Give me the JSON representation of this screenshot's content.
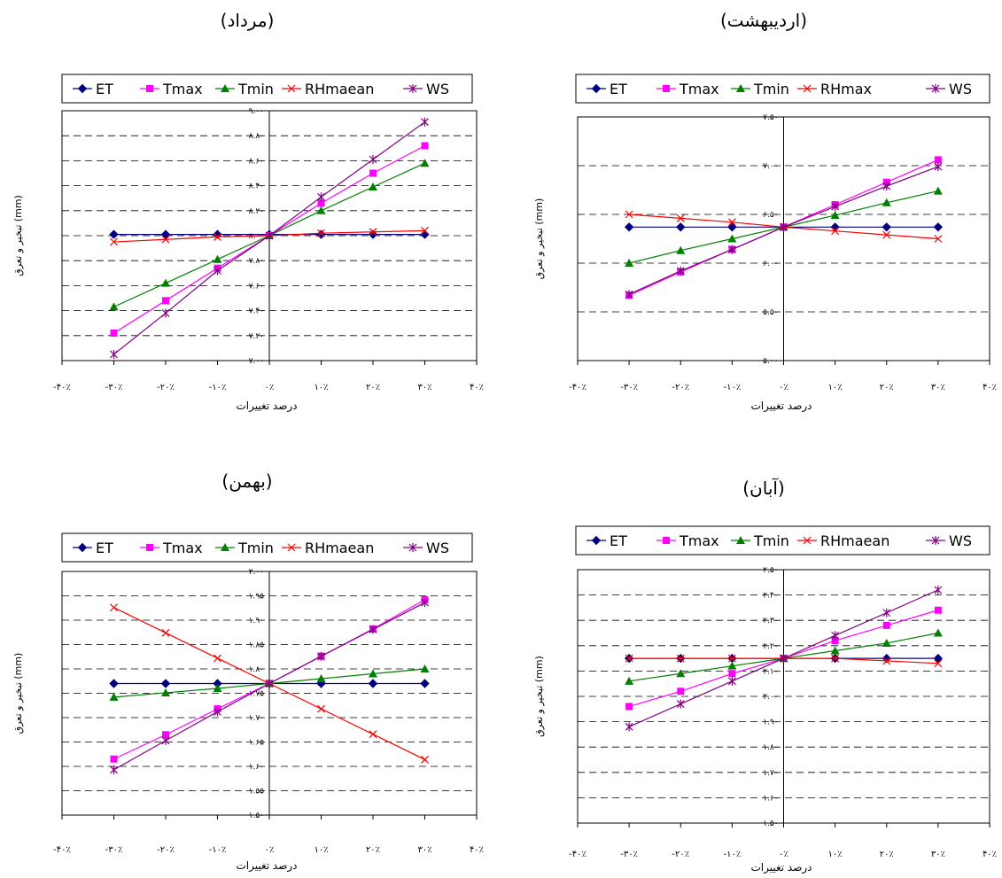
{
  "chart_data": [
    {
      "type": "line",
      "title": "(مرداد)",
      "xlabel": "درصد تغییرات",
      "ylabel": "تبخیر و تعرق (mm)",
      "x_ticks": [
        "-۴۰٪",
        "-۳۰٪",
        "-۲۰٪",
        "-۱۰٪",
        "۰٪",
        "۱۰٪",
        "۲۰٪",
        "۳۰٪",
        "۴۰٪"
      ],
      "x_values": [
        -30,
        -20,
        -10,
        0,
        10,
        20,
        30
      ],
      "xlim": [
        -40,
        40
      ],
      "ylim": [
        7.0,
        9.0
      ],
      "y_ticks": [
        "۷.۰۰",
        "۷.۲۰",
        "۷.۴۰",
        "۷.۶۰",
        "۷.۸۰",
        "۸.۰۰",
        "۸.۲۰",
        "۸.۴۰",
        "۸.۶۰",
        "۸.۸۰",
        "۹.۰۰"
      ],
      "y_tick_values": [
        7.0,
        7.2,
        7.4,
        7.6,
        7.8,
        8.0,
        8.2,
        8.4,
        8.6,
        8.8,
        9.0
      ],
      "grid": "horizontal dashed",
      "legend": "top",
      "series": [
        {
          "name": "ET",
          "values": [
            8.01,
            8.01,
            8.01,
            8.01,
            8.01,
            8.01,
            8.01
          ]
        },
        {
          "name": "Tmax",
          "values": [
            7.22,
            7.48,
            7.74,
            8.0,
            8.26,
            8.5,
            8.72
          ]
        },
        {
          "name": "Tmin",
          "values": [
            7.43,
            7.62,
            7.81,
            8.0,
            8.2,
            8.39,
            8.58
          ]
        },
        {
          "name": "RHmaean",
          "values": [
            7.95,
            7.97,
            7.99,
            8.0,
            8.02,
            8.03,
            8.04
          ]
        },
        {
          "name": "WS",
          "values": [
            7.05,
            7.38,
            7.72,
            8.0,
            8.31,
            8.61,
            8.91
          ]
        }
      ]
    },
    {
      "type": "line",
      "title": "(اردیبهشت)",
      "xlabel": "درصد تغییرات",
      "ylabel": "تبخیر و تعرق (mm)",
      "x_ticks": [
        "-۴۰٪",
        "-۳۰٪",
        "-۲۰٪",
        "-۱۰٪",
        "۰٪",
        "۱۰٪",
        "۲۰٪",
        "۳۰٪",
        "۴۰٪"
      ],
      "x_values": [
        -30,
        -20,
        -10,
        0,
        10,
        20,
        30
      ],
      "xlim": [
        -40,
        40
      ],
      "ylim": [
        5.0,
        7.5
      ],
      "y_ticks": [
        "۵.۰۰",
        "۵.۵۰",
        "۶.۰۰",
        "۶.۵۰",
        "۷.۰۰",
        "۷.۵۰"
      ],
      "y_tick_values": [
        5.0,
        5.5,
        6.0,
        6.5,
        7.0,
        7.5
      ],
      "grid": "horizontal dashed",
      "legend": "top",
      "series": [
        {
          "name": "ET",
          "values": [
            6.37,
            6.37,
            6.37,
            6.37,
            6.37,
            6.37,
            6.37
          ]
        },
        {
          "name": "Tmax",
          "values": [
            5.67,
            5.91,
            6.14,
            6.37,
            6.6,
            6.83,
            7.06
          ]
        },
        {
          "name": "Tmin",
          "values": [
            6.0,
            6.13,
            6.25,
            6.37,
            6.49,
            6.62,
            6.74
          ]
        },
        {
          "name": "RHmax",
          "values": [
            6.5,
            6.46,
            6.42,
            6.37,
            6.33,
            6.29,
            6.25
          ]
        },
        {
          "name": "WS",
          "values": [
            5.68,
            5.92,
            6.14,
            6.37,
            6.58,
            6.79,
            6.99
          ]
        }
      ]
    },
    {
      "type": "line",
      "title": "(بهمن)",
      "xlabel": "درصد تغییرات",
      "ylabel": "تبخیر و تعرق (mm)",
      "x_ticks": [
        "-۴۰٪",
        "-۳۰٪",
        "-۲۰٪",
        "-۱۰٪",
        "۰٪",
        "۱۰٪",
        "۲۰٪",
        "۳۰٪",
        "۴۰٪"
      ],
      "x_values": [
        -30,
        -20,
        -10,
        0,
        10,
        20,
        30
      ],
      "xlim": [
        -40,
        40
      ],
      "ylim": [
        1.5,
        2.0
      ],
      "y_ticks": [
        "۱.۵۰",
        "۱.۵۵",
        "۱.۶۰",
        "۱.۶۵",
        "۱.۷۰",
        "۱.۷۵",
        "۱.۸۰",
        "۱.۸۵",
        "۱.۹۰",
        "۱.۹۵",
        "۲.۰۰"
      ],
      "y_tick_values": [
        1.5,
        1.55,
        1.6,
        1.65,
        1.7,
        1.75,
        1.8,
        1.85,
        1.9,
        1.95,
        2.0
      ],
      "grid": "horizontal dashed",
      "legend": "top",
      "series": [
        {
          "name": "ET",
          "values": [
            1.77,
            1.77,
            1.77,
            1.77,
            1.77,
            1.77,
            1.77
          ]
        },
        {
          "name": "Tmax",
          "values": [
            1.615,
            1.665,
            1.718,
            1.77,
            1.826,
            1.882,
            1.942
          ]
        },
        {
          "name": "Tmin",
          "values": [
            1.742,
            1.751,
            1.76,
            1.77,
            1.78,
            1.79,
            1.8
          ]
        },
        {
          "name": "RHmaean",
          "values": [
            1.926,
            1.874,
            1.822,
            1.77,
            1.718,
            1.666,
            1.614
          ]
        },
        {
          "name": "WS",
          "values": [
            1.593,
            1.653,
            1.712,
            1.77,
            1.826,
            1.881,
            1.936
          ]
        }
      ]
    },
    {
      "type": "line",
      "title": "(آبان)",
      "xlabel": "درصد تغییرات",
      "ylabel": "تبخیر و تعرق (mm)",
      "x_ticks": [
        "-۴۰٪",
        "-۳۰٪",
        "-۲۰٪",
        "-۱۰٪",
        "۰٪",
        "۱۰٪",
        "۲۰٪",
        "۳۰٪",
        "۴۰٪"
      ],
      "x_values": [
        -30,
        -20,
        -10,
        0,
        10,
        20,
        30
      ],
      "xlim": [
        -40,
        40
      ],
      "ylim": [
        1.5,
        2.5
      ],
      "y_ticks": [
        "۱.۵۰",
        "۱.۶۰",
        "۱.۷۰",
        "۱.۸۰",
        "۱.۹۰",
        "۲.۰۰",
        "۲.۱۰",
        "۲.۲۰",
        "۲.۳۰",
        "۲.۴۰",
        "۲.۵۰"
      ],
      "y_tick_values": [
        1.5,
        1.6,
        1.7,
        1.8,
        1.9,
        2.0,
        2.1,
        2.2,
        2.3,
        2.4,
        2.5
      ],
      "grid": "horizontal dashed",
      "legend": "top",
      "series": [
        {
          "name": "ET",
          "values": [
            2.15,
            2.15,
            2.15,
            2.15,
            2.15,
            2.15,
            2.15
          ]
        },
        {
          "name": "Tmax",
          "values": [
            1.96,
            2.02,
            2.09,
            2.15,
            2.22,
            2.28,
            2.34
          ]
        },
        {
          "name": "Tmin",
          "values": [
            2.06,
            2.09,
            2.12,
            2.15,
            2.18,
            2.21,
            2.25
          ]
        },
        {
          "name": "RHmaean",
          "values": [
            2.15,
            2.15,
            2.15,
            2.15,
            2.15,
            2.14,
            2.13
          ]
        },
        {
          "name": "WS",
          "values": [
            1.88,
            1.97,
            2.06,
            2.15,
            2.24,
            2.33,
            2.42
          ]
        }
      ]
    }
  ],
  "series_styles": {
    "ET": {
      "color": "#000080",
      "marker": "diamond"
    },
    "Tmax": {
      "color": "#ff00ff",
      "marker": "square"
    },
    "Tmin": {
      "color": "#008000",
      "marker": "triangle"
    },
    "RHmaean": {
      "color": "#ff0000",
      "marker": "x"
    },
    "RHmax": {
      "color": "#ff0000",
      "marker": "x"
    },
    "WS": {
      "color": "#800080",
      "marker": "star"
    }
  }
}
